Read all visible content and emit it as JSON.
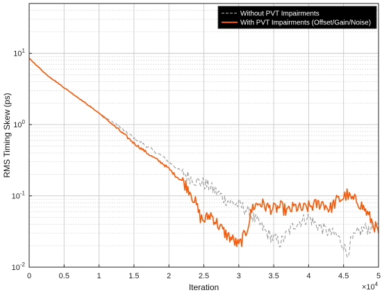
{
  "chart_data": {
    "type": "line",
    "xlabel": "Iteration",
    "ylabel": "RMS Timing Skew (ps)",
    "x_multiplier": "×10",
    "x_multiplier_exp": "4",
    "xlim": [
      0,
      50000
    ],
    "ylim": [
      0.01,
      50
    ],
    "yscale": "log",
    "grid": true,
    "legend_position": "top-right",
    "x_ticks": [
      {
        "value": 0,
        "label": "0"
      },
      {
        "value": 5000,
        "label": "0.5"
      },
      {
        "value": 10000,
        "label": "1"
      },
      {
        "value": 15000,
        "label": "1.5"
      },
      {
        "value": 20000,
        "label": "2"
      },
      {
        "value": 25000,
        "label": "2.5"
      },
      {
        "value": 30000,
        "label": "3"
      },
      {
        "value": 35000,
        "label": "3.5"
      },
      {
        "value": 40000,
        "label": "4"
      },
      {
        "value": 45000,
        "label": "4.5"
      },
      {
        "value": 50000,
        "label": "5"
      }
    ],
    "y_ticks": [
      {
        "value": 0.01,
        "base": "10",
        "exp": "-2"
      },
      {
        "value": 0.1,
        "base": "10",
        "exp": "-1"
      },
      {
        "value": 1,
        "base": "10",
        "exp": "0"
      },
      {
        "value": 10,
        "base": "10",
        "exp": "1"
      }
    ],
    "series": [
      {
        "name": "Without PVT Impairments",
        "color": "#999999",
        "style": "dashed",
        "x": [
          0,
          2500,
          5000,
          7500,
          10000,
          12500,
          15000,
          17500,
          19000,
          20000,
          21000,
          22000,
          23000,
          24000,
          25000,
          26000,
          27000,
          28000,
          29000,
          30000,
          31000,
          32000,
          33000,
          34000,
          35000,
          36000,
          37000,
          38000,
          39000,
          40000,
          41000,
          42000,
          43000,
          44000,
          45000,
          45500,
          46000,
          47000,
          48000,
          49000,
          50000
        ],
        "y": [
          8.5,
          5.0,
          3.3,
          2.2,
          1.45,
          1.0,
          0.65,
          0.45,
          0.36,
          0.3,
          0.25,
          0.21,
          0.18,
          0.16,
          0.15,
          0.13,
          0.11,
          0.09,
          0.08,
          0.075,
          0.065,
          0.05,
          0.04,
          0.03,
          0.025,
          0.022,
          0.03,
          0.04,
          0.045,
          0.05,
          0.04,
          0.035,
          0.03,
          0.028,
          0.02,
          0.015,
          0.022,
          0.03,
          0.035,
          0.035,
          0.04
        ]
      },
      {
        "name": "With PVT Impairments (Offset/Gain/Noise)",
        "color": "#ff5500",
        "style": "solid",
        "x": [
          0,
          2500,
          5000,
          7500,
          10000,
          12500,
          15000,
          17500,
          19000,
          20000,
          21000,
          22000,
          23000,
          23800,
          24500,
          25000,
          26000,
          27000,
          28000,
          29000,
          30000,
          31000,
          32000,
          33000,
          34000,
          35000,
          36000,
          37000,
          38000,
          39000,
          40000,
          41000,
          42000,
          43000,
          44000,
          45000,
          45500,
          46000,
          47000,
          48000,
          49000,
          50000
        ],
        "y": [
          8.5,
          5.0,
          3.3,
          2.2,
          1.45,
          0.9,
          0.55,
          0.36,
          0.29,
          0.24,
          0.19,
          0.16,
          0.12,
          0.08,
          0.05,
          0.045,
          0.055,
          0.04,
          0.03,
          0.025,
          0.02,
          0.03,
          0.07,
          0.08,
          0.07,
          0.065,
          0.07,
          0.06,
          0.07,
          0.065,
          0.07,
          0.075,
          0.08,
          0.065,
          0.085,
          0.095,
          0.105,
          0.09,
          0.085,
          0.065,
          0.045,
          0.03
        ]
      }
    ]
  }
}
